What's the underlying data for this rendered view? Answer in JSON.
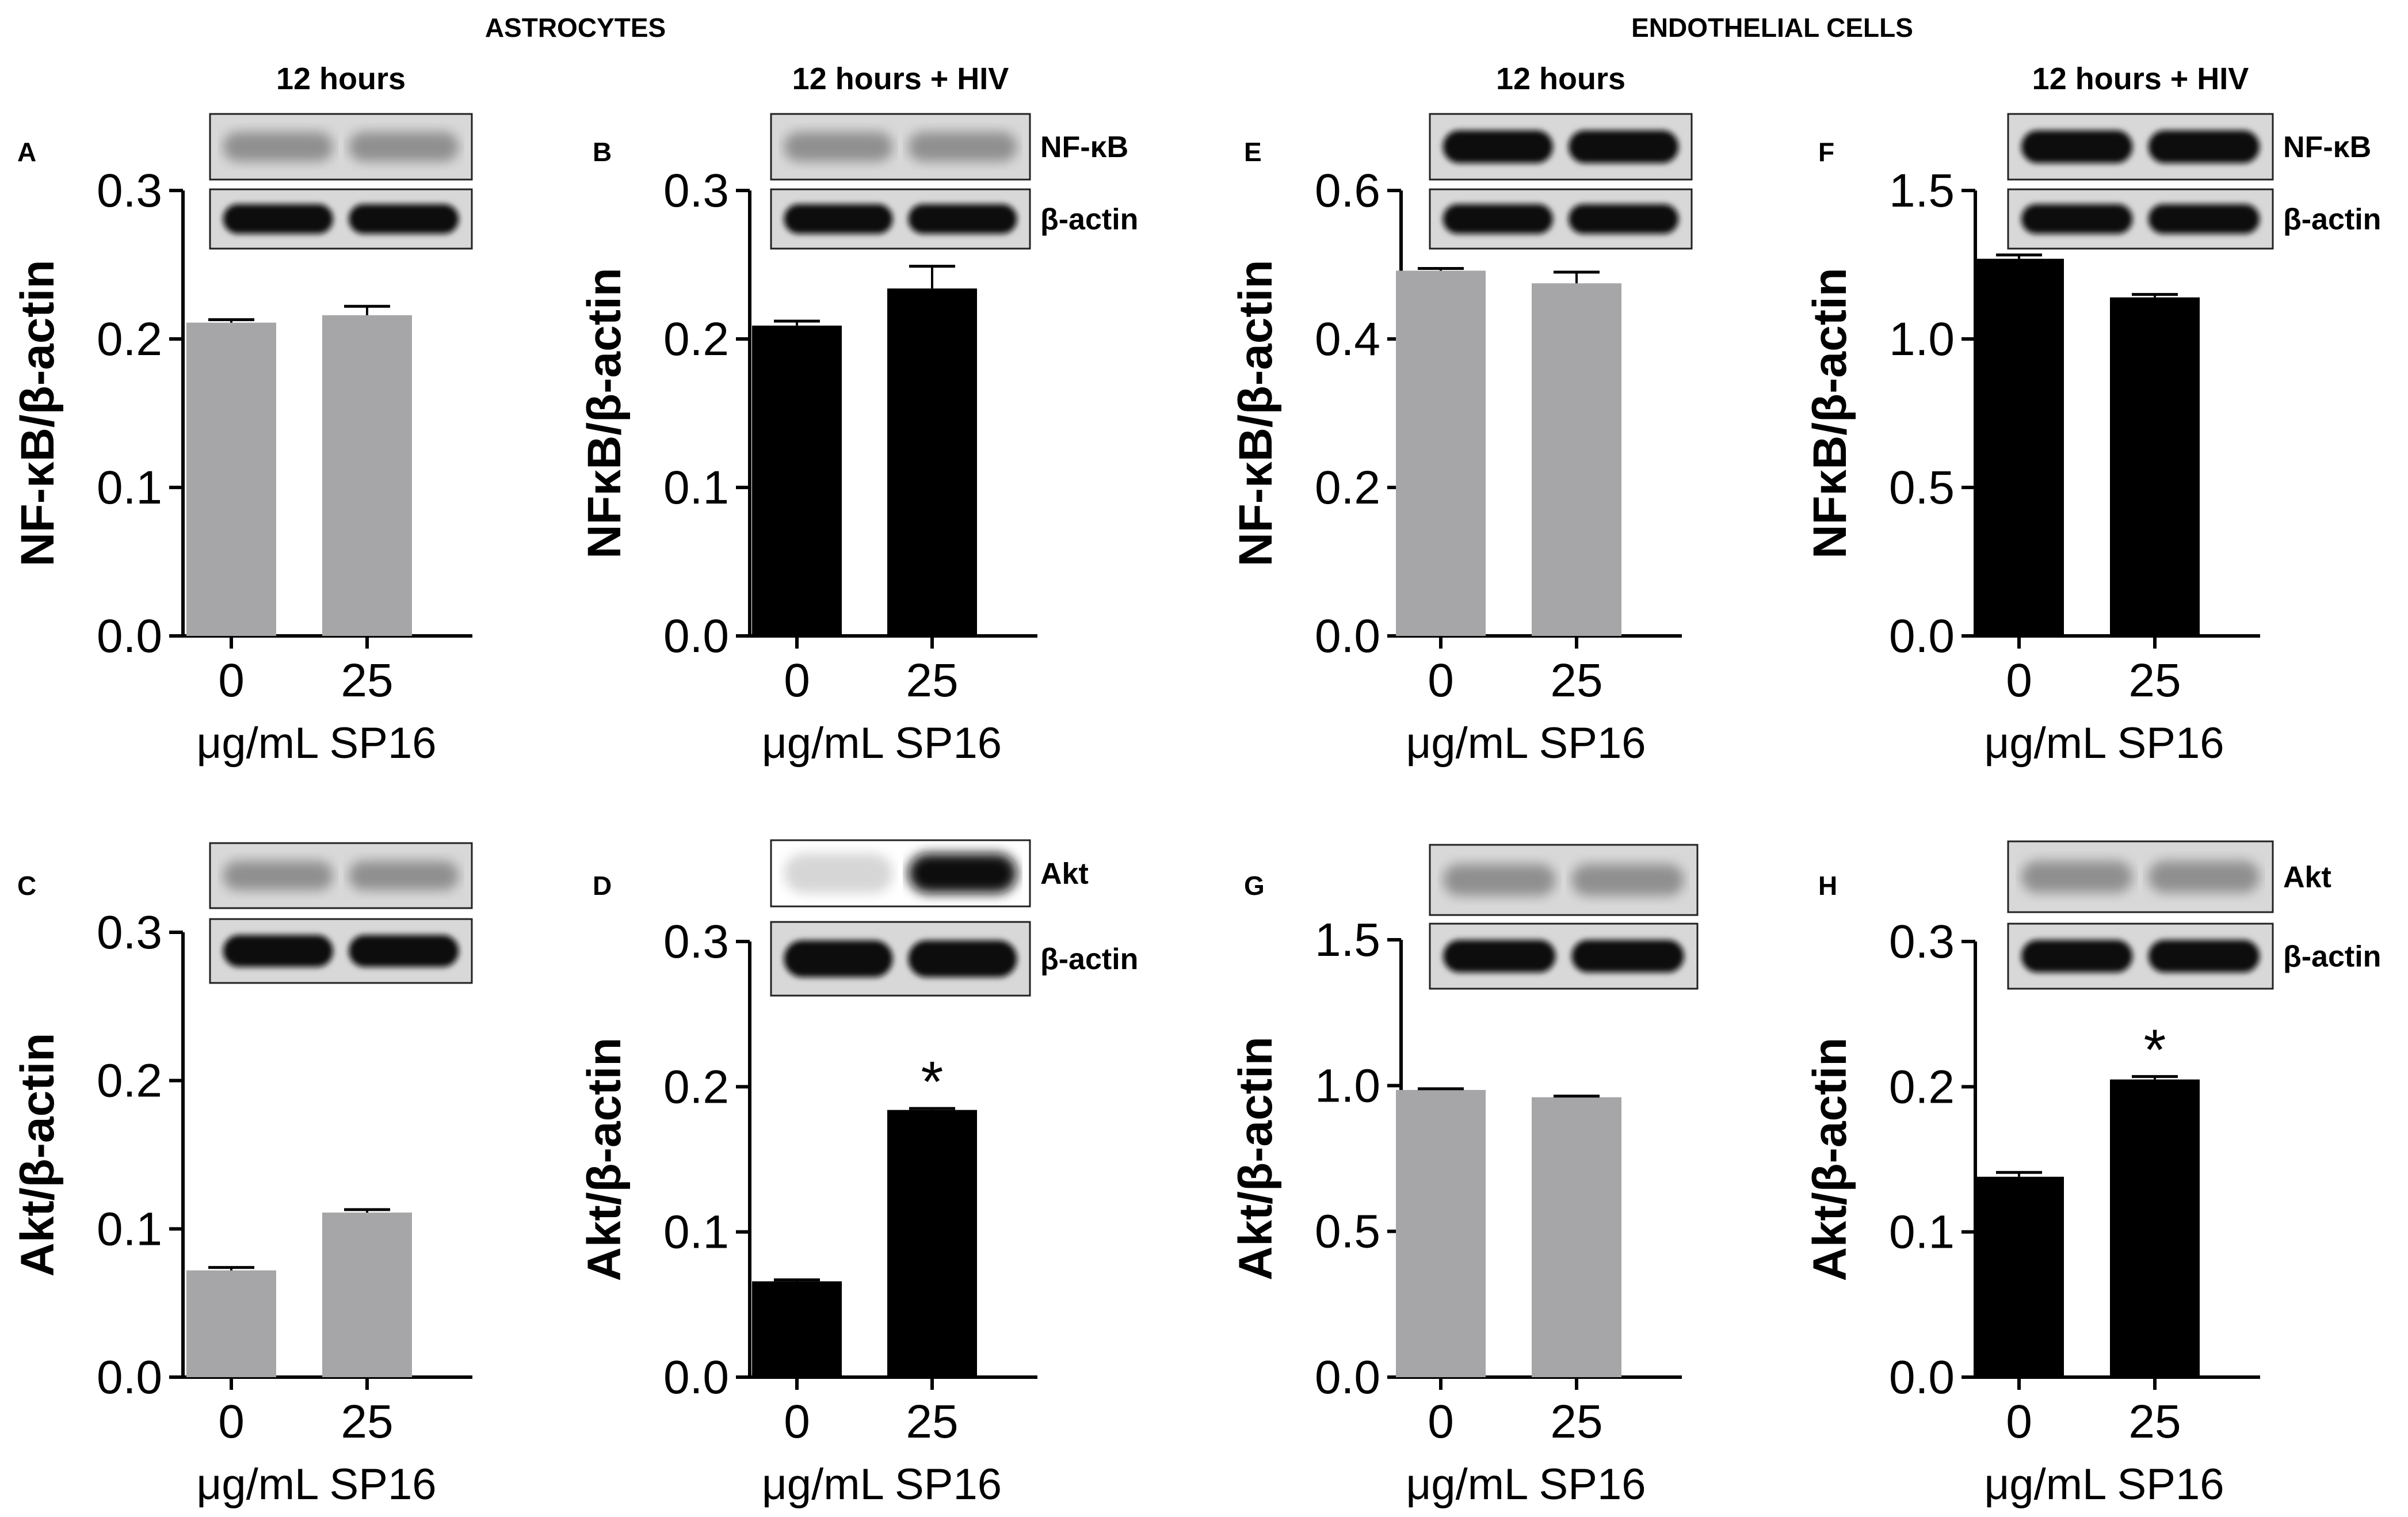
{
  "group_titles": [
    "ASTROCYTES",
    "ENDOTHELIAL CELLS"
  ],
  "colors": {
    "gray_bar": "#a6a6a8",
    "black_bar": "#000000"
  },
  "chart_data": [
    {
      "panel": "A",
      "type": "bar",
      "condition": "12 hours",
      "categories": [
        "0",
        "25"
      ],
      "values": [
        0.211,
        0.216
      ],
      "errors": [
        0.002,
        0.006
      ],
      "significant": [
        false,
        false
      ],
      "ylabel": "NF-κB/β-actin",
      "xlabel": "μg/mL SP16",
      "ylim": [
        0,
        0.3
      ],
      "yticks": [
        "0.0",
        "0.1",
        "0.2",
        "0.3"
      ],
      "blot_labels": [],
      "bar_color": "gray",
      "significance_label": ""
    },
    {
      "panel": "B",
      "type": "bar",
      "condition": "12 hours + HIV",
      "categories": [
        "0",
        "25"
      ],
      "values": [
        0.209,
        0.234
      ],
      "errors": [
        0.003,
        0.015
      ],
      "significant": [
        false,
        false
      ],
      "ylabel": "NFκB/β-actin",
      "xlabel": "μg/mL SP16",
      "ylim": [
        0,
        0.3
      ],
      "yticks": [
        "0.0",
        "0.1",
        "0.2",
        "0.3"
      ],
      "blot_labels": [
        "NF-κB",
        "β-actin"
      ],
      "bar_color": "black",
      "significance_label": ""
    },
    {
      "panel": "E",
      "type": "bar",
      "condition": "12 hours",
      "categories": [
        "0",
        "25"
      ],
      "values": [
        0.492,
        0.475
      ],
      "errors": [
        0.003,
        0.015
      ],
      "significant": [
        false,
        false
      ],
      "ylabel": "NF-κB/β-actin",
      "xlabel": "μg/mL SP16",
      "ylim": [
        0,
        0.6
      ],
      "yticks": [
        "0.0",
        "0.2",
        "0.4",
        "0.6"
      ],
      "blot_labels": [],
      "bar_color": "gray",
      "significance_label": ""
    },
    {
      "panel": "F",
      "type": "bar",
      "condition": "12 hours + HIV",
      "categories": [
        "0",
        "25"
      ],
      "values": [
        1.27,
        1.14
      ],
      "errors": [
        0.013,
        0.01
      ],
      "significant": [
        false,
        false
      ],
      "ylabel": "NFκB/β-actin",
      "xlabel": "μg/mL SP16",
      "ylim": [
        0,
        1.5
      ],
      "yticks": [
        "0.0",
        "0.5",
        "1.0",
        "1.5"
      ],
      "blot_labels": [
        "NF-κB",
        "β-actin"
      ],
      "bar_color": "black",
      "significance_label": ""
    },
    {
      "panel": "C",
      "type": "bar",
      "condition": "",
      "categories": [
        "0",
        "25"
      ],
      "values": [
        0.072,
        0.111
      ],
      "errors": [
        0.002,
        0.002
      ],
      "significant": [
        false,
        false
      ],
      "ylabel": "Akt/β-actin",
      "xlabel": "μg/mL SP16",
      "ylim": [
        0,
        0.3
      ],
      "yticks": [
        "0.0",
        "0.1",
        "0.2",
        "0.3"
      ],
      "blot_labels": [],
      "bar_color": "gray",
      "significance_label": ""
    },
    {
      "panel": "D",
      "type": "bar",
      "condition": "",
      "categories": [
        "0",
        "25"
      ],
      "values": [
        0.066,
        0.184
      ],
      "errors": [
        0.001,
        0.001
      ],
      "significant": [
        false,
        true
      ],
      "ylabel": "Akt/β-actin",
      "xlabel": "μg/mL SP16",
      "ylim": [
        0,
        0.3
      ],
      "yticks": [
        "0.0",
        "0.1",
        "0.2",
        "0.3"
      ],
      "blot_labels": [
        "Akt",
        "β-actin"
      ],
      "bar_color": "black",
      "significance_label": "*"
    },
    {
      "panel": "G",
      "type": "bar",
      "condition": "",
      "categories": [
        "0",
        "25"
      ],
      "values": [
        0.985,
        0.96
      ],
      "errors": [
        0.004,
        0.004
      ],
      "significant": [
        false,
        false
      ],
      "ylabel": "Akt/β-actin",
      "xlabel": "μg/mL SP16",
      "ylim": [
        0,
        1.5
      ],
      "yticks": [
        "0.0",
        "0.5",
        "1.0",
        "1.5"
      ],
      "blot_labels": [],
      "bar_color": "gray",
      "significance_label": ""
    },
    {
      "panel": "H",
      "type": "bar",
      "condition": "",
      "categories": [
        "0",
        "25"
      ],
      "values": [
        0.138,
        0.205
      ],
      "errors": [
        0.003,
        0.002
      ],
      "significant": [
        false,
        true
      ],
      "ylabel": "Akt/β-actin",
      "xlabel": "μg/mL SP16",
      "ylim": [
        0,
        0.3
      ],
      "yticks": [
        "0.0",
        "0.1",
        "0.2",
        "0.3"
      ],
      "blot_labels": [
        "Akt",
        "β-actin"
      ],
      "bar_color": "black",
      "significance_label": "*"
    }
  ]
}
